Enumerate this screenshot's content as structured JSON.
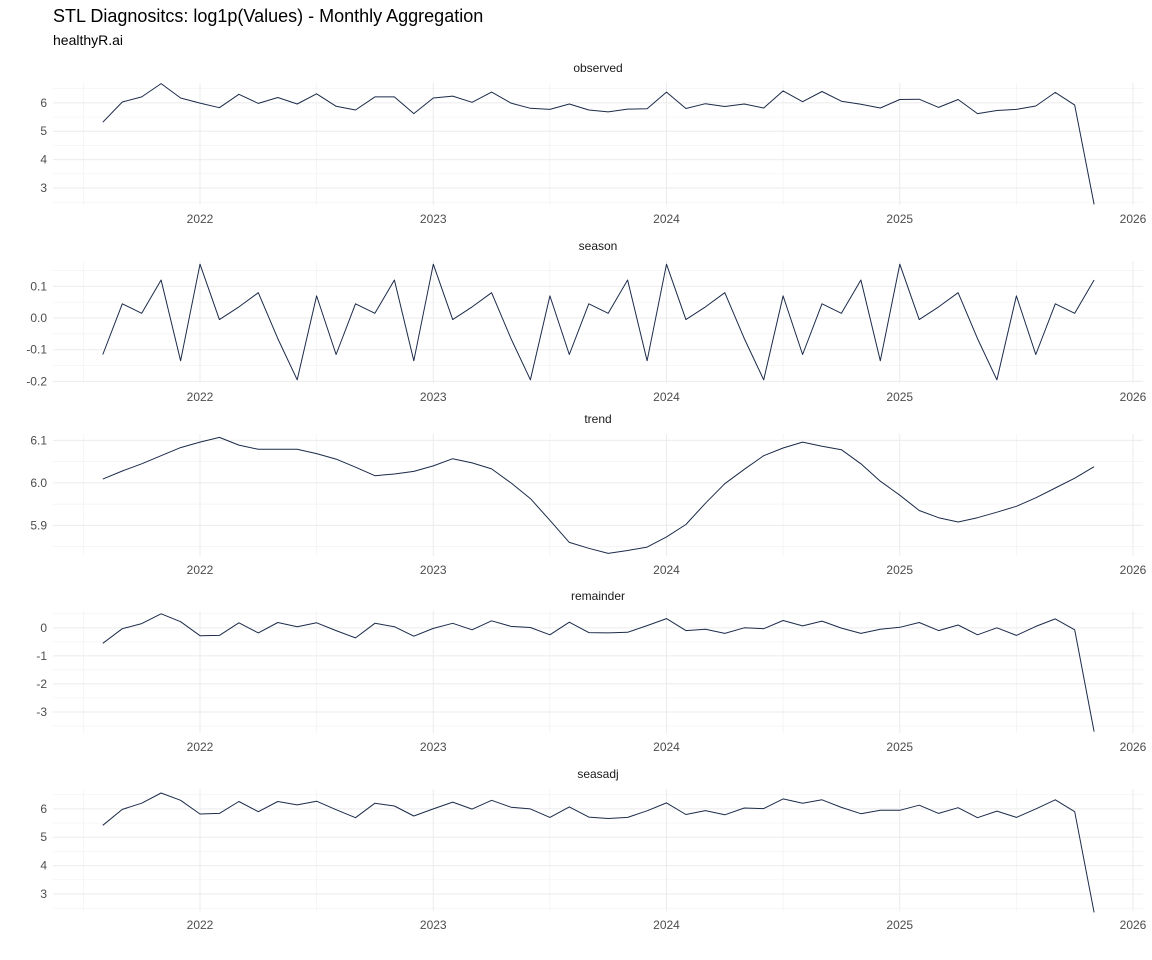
{
  "title": "STL Diagnositcs: log1p(Values) - Monthly Aggregation",
  "subtitle": "healthyR.ai",
  "chart_data": [
    {
      "type": "line",
      "facet": "observed",
      "x_ticks": [
        "2022",
        "2023",
        "2024",
        "2025",
        "2026"
      ],
      "y_ticks": [
        3,
        4,
        5,
        6
      ],
      "ylim": [
        2.4,
        6.7
      ],
      "x_start": "2021-08",
      "series": [
        {
          "values": [
            5.32,
            6.03,
            6.21,
            6.68,
            6.17,
            5.99,
            5.83,
            6.3,
            5.98,
            6.19,
            5.96,
            6.32,
            5.88,
            5.75,
            6.21,
            6.21,
            5.62,
            6.17,
            6.24,
            6.02,
            6.38,
            5.99,
            5.81,
            5.77,
            5.96,
            5.75,
            5.68,
            5.78,
            5.79,
            6.38,
            5.8,
            5.97,
            5.87,
            5.96,
            5.82,
            6.42,
            6.04,
            6.4,
            6.06,
            5.95,
            5.82,
            6.12,
            6.13,
            5.84,
            6.12,
            5.62,
            5.73,
            5.77,
            5.89,
            6.37,
            5.92,
            2.42
          ]
        }
      ]
    },
    {
      "type": "line",
      "facet": "season",
      "x_ticks": [
        "2022",
        "2023",
        "2024",
        "2025",
        "2026"
      ],
      "y_ticks": [
        -0.2,
        -0.1,
        0.0,
        0.1
      ],
      "y_tick_labels": [
        "-0.2",
        "-0.1",
        "0.0",
        "0.1"
      ],
      "ylim": [
        -0.205,
        0.18
      ],
      "x_start": "2021-08",
      "series": [
        {
          "values": [
            -0.115,
            0.045,
            0.015,
            0.12,
            -0.135,
            0.17,
            -0.005,
            0.035,
            0.08,
            -0.065,
            -0.195,
            0.07,
            -0.115,
            0.045,
            0.015,
            0.12,
            -0.135,
            0.17,
            -0.005,
            0.035,
            0.08,
            -0.065,
            -0.195,
            0.07,
            -0.115,
            0.045,
            0.015,
            0.12,
            -0.135,
            0.17,
            -0.005,
            0.035,
            0.08,
            -0.065,
            -0.195,
            0.07,
            -0.115,
            0.045,
            0.015,
            0.12,
            -0.135,
            0.17,
            -0.005,
            0.035,
            0.08,
            -0.065,
            -0.195,
            0.07,
            -0.115,
            0.045,
            0.015,
            0.12
          ]
        }
      ]
    },
    {
      "type": "line",
      "facet": "trend",
      "x_ticks": [
        "2022",
        "2023",
        "2024",
        "2025",
        "2026"
      ],
      "y_ticks": [
        5.9,
        6.0,
        6.1
      ],
      "y_tick_labels": [
        "5.9",
        "6.0",
        "6.1"
      ],
      "ylim": [
        5.828,
        6.115
      ],
      "x_start": "2021-08",
      "series": [
        {
          "values": [
            6.009,
            6.028,
            6.045,
            6.064,
            6.083,
            6.096,
            6.107,
            6.089,
            6.079,
            6.079,
            6.079,
            6.069,
            6.056,
            6.037,
            6.017,
            6.021,
            6.027,
            6.04,
            6.057,
            6.047,
            6.033,
            6.0,
            5.963,
            5.912,
            5.86,
            5.846,
            5.834,
            5.841,
            5.849,
            5.873,
            5.902,
            5.952,
            5.998,
            6.032,
            6.064,
            6.082,
            6.096,
            6.086,
            6.078,
            6.045,
            6.004,
            5.971,
            5.935,
            5.918,
            5.908,
            5.918,
            5.931,
            5.945,
            5.965,
            5.988,
            6.011,
            6.038
          ]
        }
      ]
    },
    {
      "type": "line",
      "facet": "remainder",
      "x_ticks": [
        "2022",
        "2023",
        "2024",
        "2025",
        "2026"
      ],
      "y_ticks": [
        -3,
        -2,
        -1,
        0
      ],
      "ylim": [
        -3.75,
        0.6
      ],
      "x_start": "2021-08",
      "series": [
        {
          "values": [
            -0.55,
            -0.03,
            0.15,
            0.5,
            0.22,
            -0.28,
            -0.27,
            0.18,
            -0.18,
            0.19,
            0.04,
            0.18,
            -0.1,
            -0.36,
            0.16,
            0.04,
            -0.3,
            -0.02,
            0.16,
            -0.07,
            0.25,
            0.05,
            0.01,
            -0.25,
            0.2,
            -0.17,
            -0.18,
            -0.16,
            0.08,
            0.33,
            -0.1,
            -0.05,
            -0.2,
            0.0,
            -0.03,
            0.26,
            0.07,
            0.24,
            -0.01,
            -0.2,
            -0.05,
            0.02,
            0.19,
            -0.1,
            0.1,
            -0.25,
            0.0,
            -0.27,
            0.05,
            0.32,
            -0.07,
            -3.7
          ]
        }
      ]
    },
    {
      "type": "line",
      "facet": "seasadj",
      "x_ticks": [
        "2022",
        "2023",
        "2024",
        "2025",
        "2026"
      ],
      "y_ticks": [
        3,
        4,
        5,
        6
      ],
      "ylim": [
        2.4,
        6.7
      ],
      "x_start": "2021-08",
      "series": [
        {
          "values": [
            5.42,
            5.98,
            6.2,
            6.56,
            6.3,
            5.82,
            5.84,
            6.26,
            5.9,
            6.26,
            6.14,
            6.27,
            5.97,
            5.69,
            6.2,
            6.1,
            5.75,
            6.0,
            6.24,
            5.99,
            6.3,
            6.06,
            6.0,
            5.7,
            6.07,
            5.71,
            5.66,
            5.7,
            5.93,
            6.21,
            5.8,
            5.94,
            5.79,
            6.03,
            6.01,
            6.35,
            6.2,
            6.32,
            6.05,
            5.83,
            5.95,
            5.95,
            6.13,
            5.84,
            6.04,
            5.69,
            5.92,
            5.7,
            6.0,
            6.32,
            5.9,
            2.35
          ]
        }
      ]
    }
  ]
}
